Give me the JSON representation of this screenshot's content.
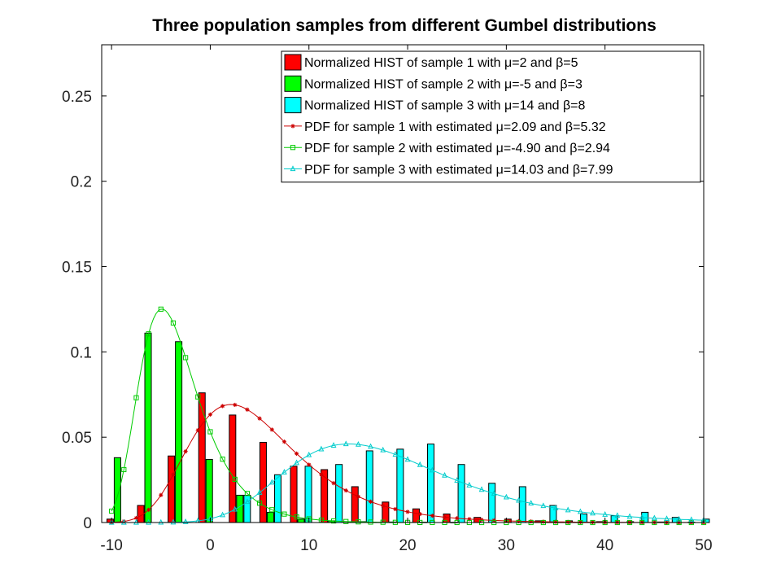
{
  "chart_data": {
    "type": "bar",
    "title": "Three population samples from different Gumbel distributions",
    "xlabel": "",
    "ylabel": "",
    "xlim": [
      -11,
      50
    ],
    "ylim": [
      0,
      0.28
    ],
    "x_ticks": [
      "-10",
      "0",
      "10",
      "20",
      "30",
      "40",
      "50"
    ],
    "y_ticks": [
      "0",
      "0.05",
      "0.1",
      "0.15",
      "0.2",
      "0.25"
    ],
    "grid": false,
    "legend_position": "top-right",
    "bar_groups": [
      -9.4,
      -6.3,
      -3.2,
      -0.1,
      3.0,
      6.1,
      9.2,
      12.3,
      15.4,
      18.5,
      21.6,
      24.7,
      27.8,
      30.9,
      34.0,
      37.1,
      40.2,
      43.3,
      46.4,
      49.5
    ],
    "series": [
      {
        "name": "Normalized HIST of sample 1 with μ=2 and β=5",
        "kind": "bar",
        "color": "#ff0000",
        "values": [
          0.002,
          0.01,
          0.039,
          0.076,
          0.063,
          0.047,
          0.033,
          0.031,
          0.021,
          0.012,
          0.008,
          0.005,
          0.003,
          0.002,
          0.001,
          0.001,
          0.0005,
          0.0005,
          0.0003,
          0.0002
        ]
      },
      {
        "name": "Normalized HIST of sample 2 with μ=-5 and β=3",
        "kind": "bar",
        "color": "#00ff00",
        "values": [
          0.038,
          0.111,
          0.106,
          0.037,
          0.016,
          0.006,
          0.002,
          0.001,
          0.0005,
          0.0003,
          0.0002,
          0.0001,
          0.0,
          0.0,
          0.0,
          0.0,
          0.0,
          0.0,
          0.0,
          0.0
        ]
      },
      {
        "name": "Normalized HIST of sample 3 with μ=14 and β=8",
        "kind": "bar",
        "color": "#00ffff",
        "values": [
          0.0,
          0.0,
          0.0,
          0.0,
          0.016,
          0.028,
          0.033,
          0.034,
          0.042,
          0.043,
          0.046,
          0.034,
          0.023,
          0.021,
          0.01,
          0.005,
          0.004,
          0.006,
          0.003,
          0.002
        ]
      },
      {
        "name": "PDF for sample 1 with estimated μ=2.09 and β=5.32",
        "kind": "line",
        "marker": "star",
        "color": "#cc0000",
        "mu": 2.09,
        "beta": 5.32
      },
      {
        "name": "PDF for sample 2 with estimated μ=-4.90 and β=2.94",
        "kind": "line",
        "marker": "square",
        "color": "#00cc00",
        "mu": -4.9,
        "beta": 2.94
      },
      {
        "name": "PDF for sample 3 with estimated μ=14.03 and β=7.99",
        "kind": "line",
        "marker": "triangle",
        "color": "#00cccc",
        "mu": 14.03,
        "beta": 7.99
      }
    ]
  }
}
